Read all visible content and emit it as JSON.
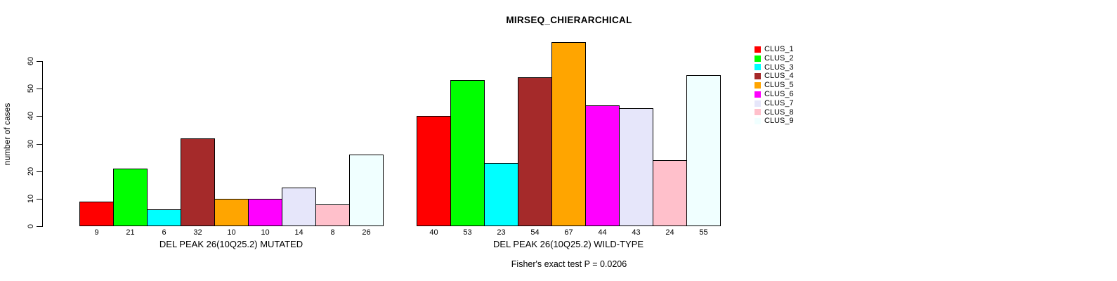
{
  "title": "MIRSEQ_CHIERARCHICAL",
  "chart_data": {
    "type": "bar",
    "title": "MIRSEQ_CHIERARCHICAL",
    "ylabel": "number of cases",
    "ylim": [
      0,
      67
    ],
    "y_ticks": [
      0,
      10,
      20,
      30,
      40,
      50,
      60
    ],
    "grid": false,
    "legend_position": "right",
    "categories": [
      "CLUS_1",
      "CLUS_2",
      "CLUS_3",
      "CLUS_4",
      "CLUS_5",
      "CLUS_6",
      "CLUS_7",
      "CLUS_8",
      "CLUS_9"
    ],
    "groups": [
      {
        "xlabel": "DEL PEAK 26(10Q25.2) MUTATED",
        "values": [
          9,
          21,
          6,
          32,
          10,
          10,
          14,
          8,
          26
        ]
      },
      {
        "xlabel": "DEL PEAK 26(10Q25.2) WILD-TYPE",
        "values": [
          40,
          53,
          23,
          54,
          67,
          44,
          43,
          24,
          55
        ]
      }
    ],
    "annotation": "Fisher's exact test P = 0.0206"
  },
  "legend": {
    "entries": [
      {
        "label": "CLUS_1",
        "color": "#FF0000"
      },
      {
        "label": "CLUS_2",
        "color": "#00FF00"
      },
      {
        "label": "CLUS_3",
        "color": "#00FFFF"
      },
      {
        "label": "CLUS_4",
        "color": "#A52A2A"
      },
      {
        "label": "CLUS_5",
        "color": "#FFA500"
      },
      {
        "label": "CLUS_6",
        "color": "#FF00FF"
      },
      {
        "label": "CLUS_7",
        "color": "#E6E6FA"
      },
      {
        "label": "CLUS_8",
        "color": "#FFC0CB"
      },
      {
        "label": "CLUS_9",
        "color": "#F0FFFF"
      }
    ]
  },
  "colors": {
    "axis": "#000000",
    "background": "#FFFFFF"
  }
}
